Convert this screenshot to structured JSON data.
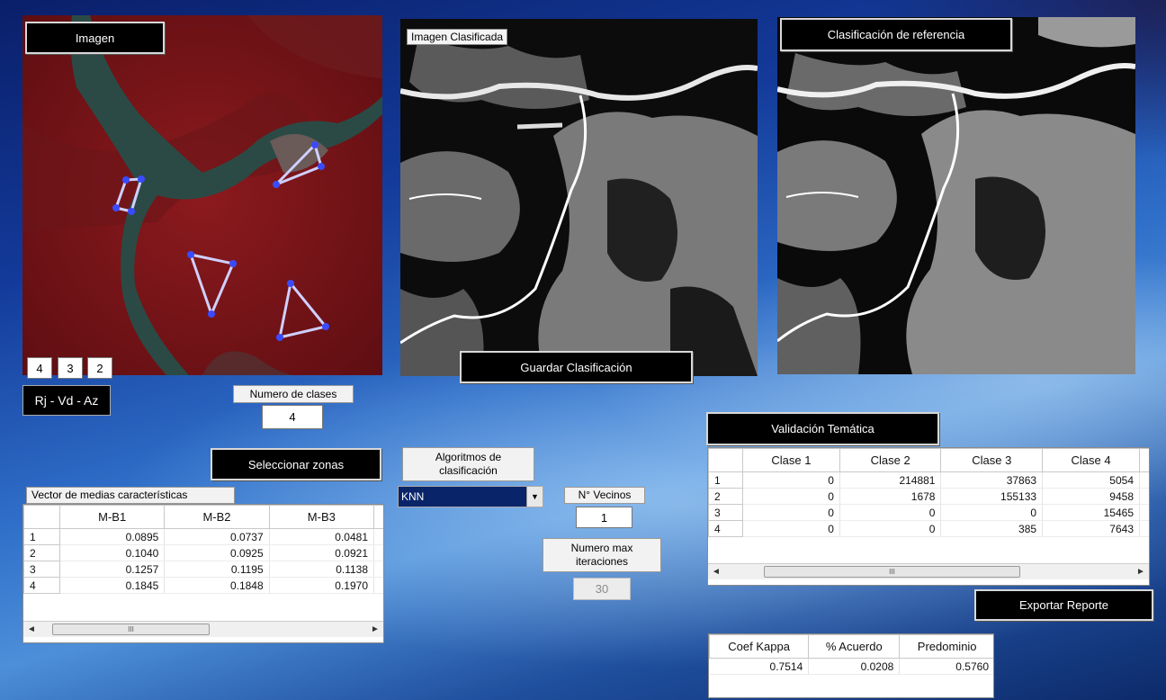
{
  "panels": {
    "image_title": "Imagen",
    "classified_title": "Imagen Clasificada",
    "reference_title": "Clasificación de referencia"
  },
  "bands": {
    "values": [
      "4",
      "3",
      "2"
    ],
    "combo_label": "Rj - Vd - Az"
  },
  "buttons": {
    "save_classification": "Guardar Clasificación",
    "select_zones": "Seleccionar zonas",
    "thematic_validation": "Validación Temática",
    "export_report": "Exportar Reporte"
  },
  "num_classes": {
    "label": "Numero de clases",
    "value": "4"
  },
  "algorithm": {
    "label": "Algoritmos de clasificación",
    "selected": "KNN"
  },
  "neighbors": {
    "label": "N° Vecinos",
    "value": "1"
  },
  "max_iter": {
    "label": "Numero max iteraciones",
    "value": "30"
  },
  "mean_vector": {
    "title": "Vector de medias características",
    "columns": [
      "M-B1",
      "M-B2",
      "M-B3",
      "M"
    ],
    "rows": [
      {
        "id": "1",
        "values": [
          "0.0895",
          "0.0737",
          "0.0481"
        ]
      },
      {
        "id": "2",
        "values": [
          "0.1040",
          "0.0925",
          "0.0921"
        ]
      },
      {
        "id": "3",
        "values": [
          "0.1257",
          "0.1195",
          "0.1138"
        ]
      },
      {
        "id": "4",
        "values": [
          "0.1845",
          "0.1848",
          "0.1970"
        ]
      }
    ],
    "scroll_grip": "III"
  },
  "validation_table": {
    "columns": [
      "Clase 1",
      "Clase 2",
      "Clase 3",
      "Clase 4",
      "C"
    ],
    "rows": [
      {
        "id": "1",
        "values": [
          "0",
          "214881",
          "37863",
          "5054"
        ]
      },
      {
        "id": "2",
        "values": [
          "0",
          "1678",
          "155133",
          "9458"
        ]
      },
      {
        "id": "3",
        "values": [
          "0",
          "0",
          "0",
          "15465"
        ]
      },
      {
        "id": "4",
        "values": [
          "0",
          "0",
          "385",
          "7643"
        ]
      }
    ],
    "scroll_grip": "III"
  },
  "kappa_table": {
    "columns": [
      "Coef Kappa",
      "% Acuerdo",
      "Predominio"
    ],
    "values": [
      "0.7514",
      "0.0208",
      "0.5760"
    ]
  },
  "colors": {
    "button_bg": "#000000",
    "marker_blue": "#3a4bff",
    "satellite_red": "#7a1418",
    "river_dark": "#2b4a45"
  },
  "icons": {
    "dropdown": "chevron-down-icon",
    "scroll_left": "arrow-left-icon",
    "scroll_right": "arrow-right-icon"
  }
}
